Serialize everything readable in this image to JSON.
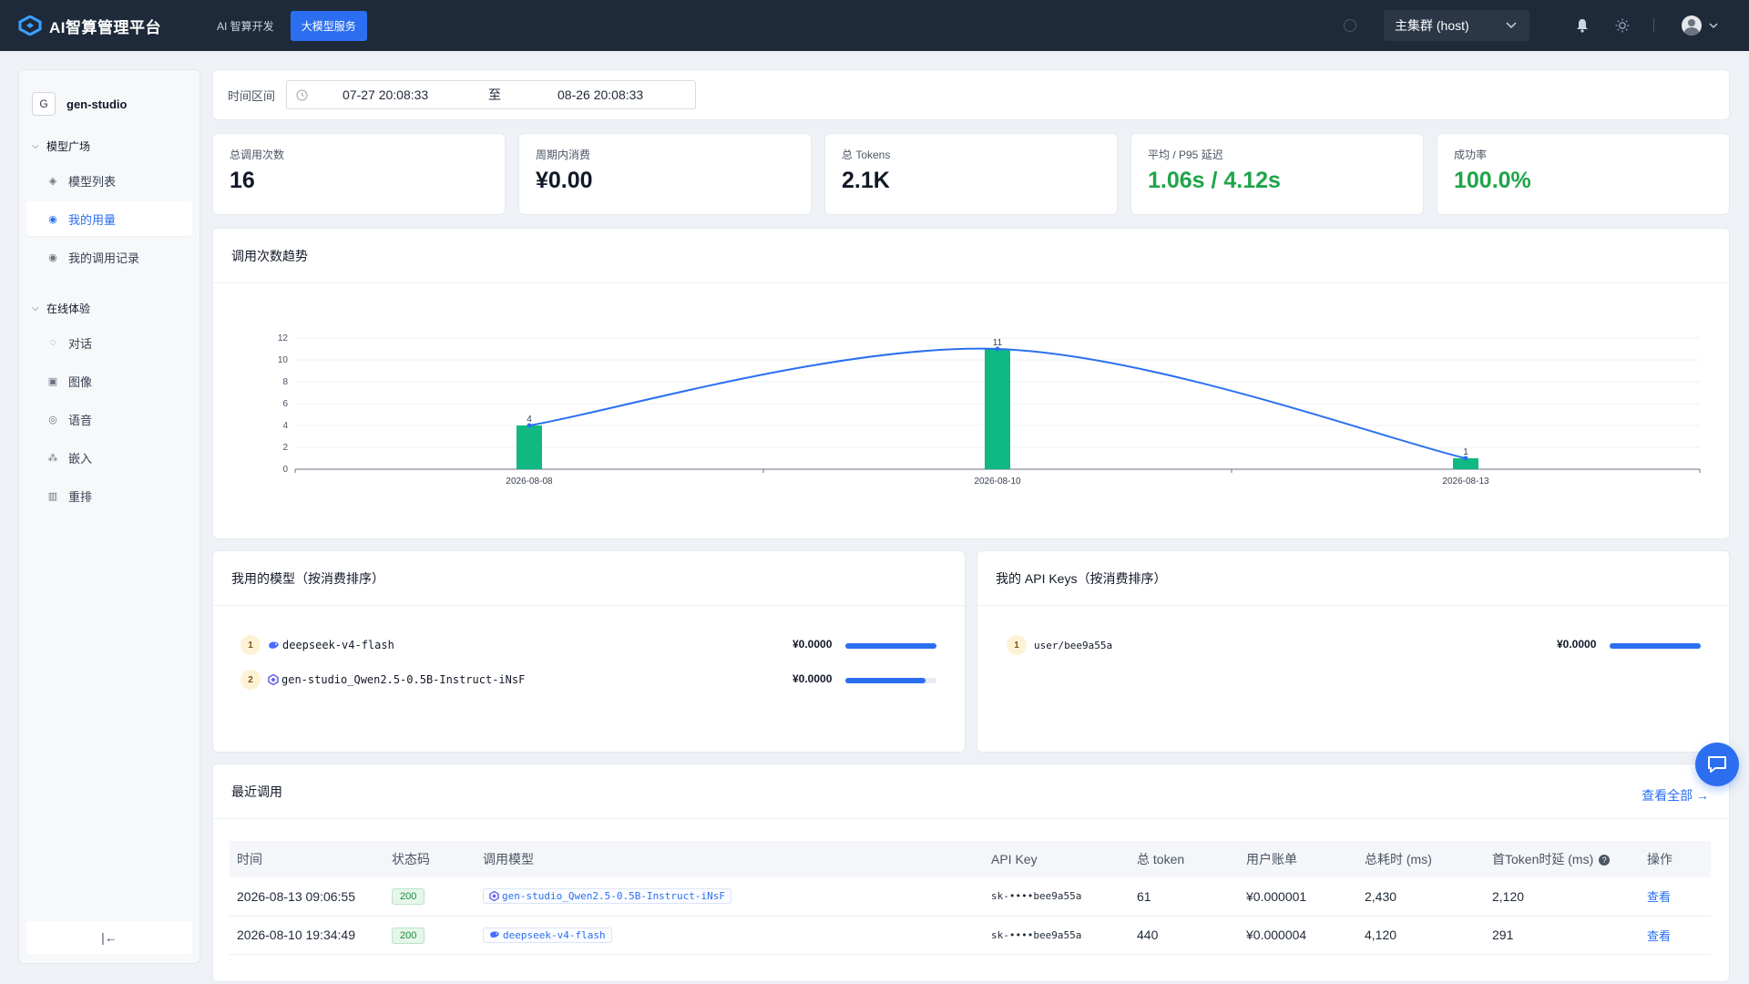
{
  "app": {
    "title": "AI智算管理平台"
  },
  "topnav": {
    "items": [
      {
        "label": "AI 智算开发"
      },
      {
        "label": "大模型服务"
      }
    ]
  },
  "cluster": {
    "selected": "主集群 (host)"
  },
  "workspace": {
    "badge": "G",
    "name": "gen-studio"
  },
  "sidebar": {
    "groups": [
      {
        "label": "模型广场",
        "items": [
          {
            "label": "模型列表"
          },
          {
            "label": "我的用量"
          },
          {
            "label": "我的调用记录"
          }
        ]
      },
      {
        "label": "在线体验",
        "items": [
          {
            "label": "对话"
          },
          {
            "label": "图像"
          },
          {
            "label": "语音"
          },
          {
            "label": "嵌入"
          },
          {
            "label": "重排"
          }
        ]
      }
    ],
    "collapse_glyph": "|←"
  },
  "filter": {
    "label": "时间区间",
    "start": "07-27 20:08:33",
    "to": "至",
    "end": "08-26 20:08:33"
  },
  "stats": [
    {
      "label": "总调用次数",
      "value": "16"
    },
    {
      "label": "周期内消费",
      "value": "¥0.00"
    },
    {
      "label": "总 Tokens",
      "value": "2.1K"
    },
    {
      "label": "平均 / P95 延迟",
      "value": "1.06s / 4.12s"
    },
    {
      "label": "成功率",
      "value": "100.0%"
    }
  ],
  "trend": {
    "title": "调用次数趋势"
  },
  "chart_data": {
    "type": "bar",
    "title": "调用次数趋势",
    "categories": [
      "2026-08-08",
      "2026-08-10",
      "2026-08-13"
    ],
    "values": [
      4,
      11,
      1
    ],
    "line_values": [
      4,
      11,
      1
    ],
    "yticks": [
      0,
      2,
      4,
      6,
      8,
      10,
      12
    ],
    "ylim": [
      0,
      12
    ],
    "bar_color": "#10b981",
    "line_color": "#2b6ff0",
    "grid": true
  },
  "models": {
    "title": "我用的模型（按消费排序）",
    "rows": [
      {
        "rank": "1",
        "name": "deepseek-v4-flash",
        "cost": "¥0.0000",
        "share": 1.0
      },
      {
        "rank": "2",
        "name": "gen-studio_Qwen2.5-0.5B-Instruct-iNsF",
        "cost": "¥0.0000",
        "share": 0.88
      }
    ]
  },
  "keys": {
    "title": "我的 API Keys（按消费排序）",
    "rows": [
      {
        "rank": "1",
        "name": "user/bee9a55a",
        "cost": "¥0.0000",
        "share": 1.0
      }
    ]
  },
  "recent": {
    "title": "最近调用",
    "view_all": "查看全部 →",
    "columns": [
      "时间",
      "状态码",
      "调用模型",
      "API Key",
      "总 token",
      "用户账单",
      "总耗时 (ms)",
      "首Token时延 (ms)",
      "操作"
    ],
    "rows": [
      {
        "time": "2026-08-13 09:06:55",
        "status": "200",
        "model": "gen-studio_Qwen2.5-0.5B-Instruct-iNsF",
        "key": "sk-••••bee9a55a",
        "tokens": "61",
        "bill": "¥0.000001",
        "total_ms": "2,430",
        "ttft": "2,120",
        "op": "查看"
      },
      {
        "time": "2026-08-10 19:34:49",
        "status": "200",
        "model": "deepseek-v4-flash",
        "key": "sk-••••bee9a55a",
        "tokens": "440",
        "bill": "¥0.000004",
        "total_ms": "4,120",
        "ttft": "291",
        "op": "查看"
      }
    ]
  },
  "colors": {
    "accent": "#2b6ff0",
    "topbar": "#1e2a3a",
    "success": "#1ea54a",
    "warn": "#e0651c"
  }
}
